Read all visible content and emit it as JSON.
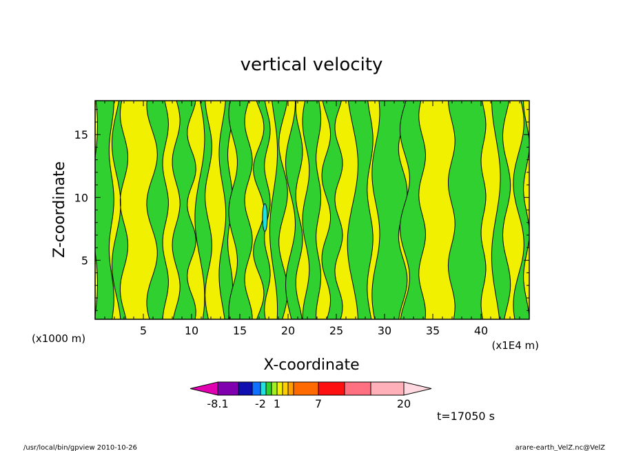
{
  "chart_data": {
    "type": "heatmap",
    "title": "vertical velocity",
    "xlabel": "X-coordinate",
    "ylabel": "Z-coordinate",
    "x_scale_note": "(x1E4 m)",
    "y_scale_note": "(x1000 m)",
    "xlim": [
      0,
      45
    ],
    "ylim": [
      0.3,
      17.7
    ],
    "x_ticks": [
      5,
      10,
      15,
      20,
      25,
      30,
      35,
      40
    ],
    "y_ticks": [
      5,
      10,
      15
    ],
    "time_label": "t=17050 s",
    "colorbar": {
      "tick_labels": [
        "-8.1",
        "-2",
        "1",
        "7",
        "20"
      ],
      "colors": [
        "#e000b0",
        "#8000b0",
        "#1010b0",
        "#1070ff",
        "#20e0e0",
        "#30d030",
        "#a0f020",
        "#f0f000",
        "#ffd000",
        "#ffa000",
        "#ff6a00",
        "#ff1010",
        "#ff7080",
        "#ffb0b8",
        "#ffd8e0"
      ]
    },
    "field_colors": {
      "positive": "#f0f000",
      "weak_negative": "#30d030",
      "negative": "#20e0e0"
    },
    "green_bands": [
      {
        "xc": 0.8,
        "w": 1.8
      },
      {
        "xc": 2.6,
        "w": 0.8
      },
      {
        "xc": 6.6,
        "w": 1.4
      },
      {
        "xc": 9.2,
        "w": 1.6
      },
      {
        "xc": 11.3,
        "w": 0.9
      },
      {
        "xc": 13.6,
        "w": 0.8
      },
      {
        "xc": 15.1,
        "w": 1.6
      },
      {
        "xc": 17.4,
        "w": 0.9
      },
      {
        "xc": 19.0,
        "w": 1.0
      },
      {
        "xc": 20.7,
        "w": 0.9
      },
      {
        "xc": 22.5,
        "w": 1.3
      },
      {
        "xc": 24.6,
        "w": 1.3
      },
      {
        "xc": 27.6,
        "w": 1.8
      },
      {
        "xc": 30.5,
        "w": 2.8
      },
      {
        "xc": 33.0,
        "w": 1.8
      },
      {
        "xc": 38.6,
        "w": 3.3
      },
      {
        "xc": 42.1,
        "w": 1.1
      },
      {
        "xc": 44.3,
        "w": 0.8
      }
    ],
    "negative_cells": [
      {
        "x": 17.6,
        "z": 8.4,
        "rx": 0.25,
        "rz": 1.1
      }
    ]
  },
  "footer": {
    "left": "/usr/local/bin/gpview  2010-10-26",
    "right": "arare-earth_VelZ.nc@VelZ"
  }
}
